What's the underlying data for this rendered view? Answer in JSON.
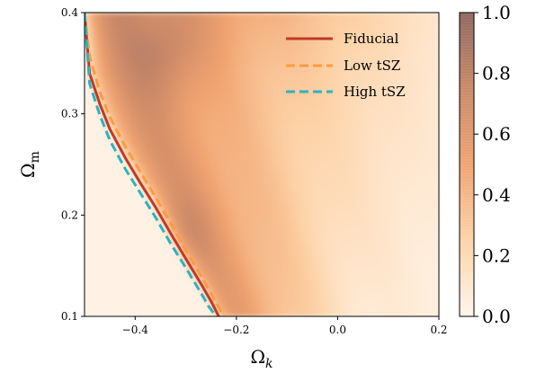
{
  "chart_data": {
    "type": "heatmap",
    "title": "",
    "xlabel": "Ω",
    "xlabel_sub": "k",
    "ylabel": "Ω",
    "ylabel_sub": "m",
    "xlim": [
      -0.5,
      0.2
    ],
    "ylim": [
      0.1,
      0.4
    ],
    "xticks": [
      -0.4,
      -0.2,
      0.0,
      0.2
    ],
    "xtick_labels": [
      "−0.4",
      "−0.2",
      "0.0",
      "0.2"
    ],
    "yticks": [
      0.1,
      0.2,
      0.3,
      0.4
    ],
    "ytick_labels": [
      "0.1",
      "0.2",
      "0.3",
      "0.4"
    ],
    "colorbar": {
      "range": [
        0.0,
        1.0
      ],
      "ticks": [
        0.0,
        0.2,
        0.4,
        0.6,
        0.8,
        1.0
      ],
      "tick_labels": [
        "0.0",
        "0.2",
        "0.4",
        "0.6",
        "0.8",
        "1.0"
      ],
      "colors": [
        "#fff5eb",
        "#fdd3a8",
        "#f0a370",
        "#c98868",
        "#8f6860"
      ]
    },
    "series": [
      {
        "name": "Fiducial",
        "color": "#c0392b",
        "style": "solid",
        "x": [
          -0.5,
          -0.49,
          -0.47,
          -0.45,
          -0.42,
          -0.39,
          -0.36,
          -0.33,
          -0.3,
          -0.27,
          -0.25,
          -0.235
        ],
        "y": [
          0.4,
          0.34,
          0.31,
          0.285,
          0.257,
          0.232,
          0.208,
          0.182,
          0.157,
          0.132,
          0.115,
          0.1
        ]
      },
      {
        "name": "Low tSZ",
        "color": "#fd9b40",
        "style": "dashed",
        "x": [
          -0.5,
          -0.49,
          -0.47,
          -0.45,
          -0.42,
          -0.39,
          -0.36,
          -0.33,
          -0.3,
          -0.27,
          -0.245,
          -0.225
        ],
        "y": [
          0.4,
          0.357,
          0.322,
          0.297,
          0.268,
          0.243,
          0.218,
          0.192,
          0.165,
          0.14,
          0.118,
          0.1
        ]
      },
      {
        "name": "High tSZ",
        "color": "#2bb3c0",
        "style": "dashed",
        "x": [
          -0.5,
          -0.49,
          -0.47,
          -0.45,
          -0.42,
          -0.39,
          -0.36,
          -0.33,
          -0.3,
          -0.27,
          -0.255,
          -0.24
        ],
        "y": [
          0.4,
          0.33,
          0.299,
          0.274,
          0.246,
          0.222,
          0.198,
          0.172,
          0.148,
          0.123,
          0.11,
          0.1
        ]
      }
    ],
    "legend_position": "top-right"
  }
}
